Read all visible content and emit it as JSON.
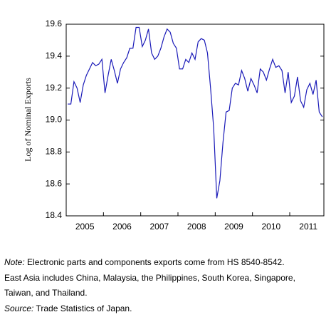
{
  "chart_data": {
    "type": "line",
    "y_label": "Log of Nominal Exports",
    "categories": [
      null,
      null,
      null,
      null,
      null,
      "2005",
      null,
      null,
      null,
      null,
      null,
      null,
      null,
      null,
      null,
      null,
      null,
      "2006",
      null,
      null,
      null,
      null,
      null,
      null,
      null,
      null,
      null,
      null,
      null,
      "2007",
      null,
      null,
      null,
      null,
      null,
      null,
      null,
      null,
      null,
      null,
      null,
      "2008",
      null,
      null,
      null,
      null,
      null,
      null,
      null,
      null,
      null,
      null,
      null,
      "2009",
      null,
      null,
      null,
      null,
      null,
      null,
      null,
      null,
      null,
      null,
      null,
      "2010",
      null,
      null,
      null,
      null,
      null,
      null,
      null,
      null,
      null,
      null,
      null,
      "2011",
      null,
      null,
      null,
      null,
      null
    ],
    "values": [
      19.1,
      19.1,
      19.24,
      19.2,
      19.11,
      19.22,
      19.28,
      19.32,
      19.36,
      19.34,
      19.35,
      19.38,
      19.17,
      19.28,
      19.38,
      19.31,
      19.23,
      19.32,
      19.36,
      19.39,
      19.45,
      19.45,
      19.58,
      19.58,
      19.46,
      19.5,
      19.57,
      19.42,
      19.38,
      19.4,
      19.45,
      19.52,
      19.57,
      19.55,
      19.48,
      19.45,
      19.32,
      19.32,
      19.38,
      19.36,
      19.42,
      19.38,
      19.49,
      19.51,
      19.5,
      19.42,
      19.2,
      18.95,
      18.51,
      18.62,
      18.86,
      19.05,
      19.06,
      19.2,
      19.23,
      19.22,
      19.31,
      19.26,
      19.18,
      19.26,
      19.22,
      19.17,
      19.32,
      19.3,
      19.25,
      19.32,
      19.38,
      19.33,
      19.34,
      19.31,
      19.17,
      19.3,
      19.11,
      19.15,
      19.27,
      19.12,
      19.08,
      19.19,
      19.23,
      19.16,
      19.25,
      19.05,
      19.02
    ],
    "color": "#1a1ab8",
    "ylim": [
      18.4,
      19.6
    ],
    "yticks": [
      18.4,
      18.6,
      18.8,
      {
        "value": 19,
        "label": "19.0"
      },
      19.2,
      19.4,
      19.6
    ],
    "grid": false,
    "note_label": "Note:",
    "note": [
      "Electronic parts and components exports come from HS 8540-8542.",
      "East Asia includes China, Malaysia, the Philippines, South Korea, Singapore,",
      "Taiwan, and Thailand."
    ],
    "source_label": "Source:",
    "source": "Trade Statistics of Japan."
  }
}
